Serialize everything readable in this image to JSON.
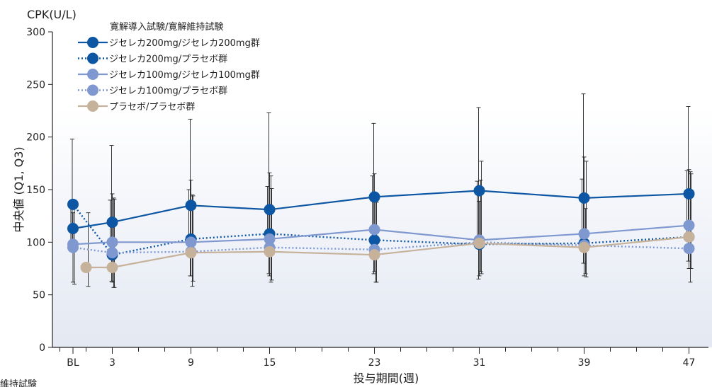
{
  "chart_data": {
    "type": "line",
    "ylabel_top": "CPK(U/L)",
    "ylabel_side": "中央値 (Q1, Q3)",
    "xlabel": "投与期間(週)",
    "legend_title": "寛解導入試験/寛解維持試験",
    "footnote": "維持試験",
    "x_weeks": [
      0,
      3,
      9,
      15,
      23,
      31,
      39,
      47
    ],
    "x_tick_labels": [
      "BL",
      "3",
      "9",
      "15",
      "23",
      "31",
      "39",
      "47"
    ],
    "ylim": [
      0,
      300
    ],
    "y_ticks": [
      0,
      50,
      100,
      150,
      200,
      250,
      300
    ],
    "series": [
      {
        "name": "ジセレカ200mg/ジセレカ200mg群",
        "color": "#0d56a3",
        "line": "solid",
        "segments": [
          [
            [
              0,
              113,
              96,
              135
            ],
            [
              3,
              119,
              90,
              140
            ],
            [
              9,
              135,
              98,
              150
            ],
            [
              15,
              131,
              95,
              153
            ],
            [
              23,
              143,
              102,
              163
            ],
            [
              31,
              149,
              100,
              158
            ],
            [
              39,
              142,
              104,
              160
            ],
            [
              47,
              146,
              103,
              168
            ]
          ],
          [
            [
              0,
              136,
              92,
              198
            ],
            [
              3,
              88,
              63,
              192
            ],
            [
              9,
              103,
              68,
              217
            ],
            [
              15,
              108,
              70,
              223
            ],
            [
              23,
              102,
              70,
              213
            ],
            [
              31,
              98,
              65,
              228
            ],
            [
              39,
              99,
              80,
              241
            ],
            [
              47,
              105,
              82,
              229
            ]
          ]
        ],
        "segment_styles": [
          "solid",
          "dotted"
        ]
      },
      {
        "name": "ジセレカ100mg/ジセレカ100mg群",
        "color": "#7f98d0",
        "segments": [
          [
            [
              0,
              98,
              62,
              128
            ],
            [
              3,
              100,
              62,
              146
            ],
            [
              9,
              100,
              68,
              159
            ],
            [
              15,
              103,
              68,
              166
            ],
            [
              23,
              112,
              72,
              165
            ],
            [
              31,
              102,
              68,
              139
            ],
            [
              39,
              108,
              68,
              181
            ],
            [
              47,
              116,
              75,
              169
            ]
          ],
          [
            [
              0,
              95,
              60,
              132
            ],
            [
              3,
              90,
              57,
              142
            ],
            [
              9,
              91,
              58,
              145
            ],
            [
              15,
              95,
              62,
              163
            ],
            [
              23,
              93,
              62,
              145
            ],
            [
              31,
              100,
              72,
              159
            ],
            [
              39,
              97,
              70,
              132
            ],
            [
              47,
              94,
              62,
              167
            ]
          ]
        ],
        "segment_styles": [
          "solid",
          "dotted"
        ]
      },
      {
        "name": "プラセボ/プラセボ群",
        "color": "#c6b29a",
        "segments": [
          [
            [
              1,
              76,
              58,
              128
            ],
            [
              3,
              76,
              57,
              141
            ],
            [
              9,
              90,
              63,
              144
            ],
            [
              15,
              91,
              64,
              151
            ],
            [
              23,
              88,
              62,
              138
            ],
            [
              31,
              99,
              70,
              177
            ],
            [
              39,
              95,
              67,
              177
            ],
            [
              47,
              105,
              75,
              165
            ]
          ]
        ],
        "segment_styles": [
          "solid"
        ]
      }
    ],
    "legend": [
      {
        "label": "ジセレカ200mg/ジセレカ200mg群",
        "color": "#0d56a3",
        "style": "solid"
      },
      {
        "label": "ジセレカ200mg/プラセボ群",
        "color": "#0d56a3",
        "style": "dotted"
      },
      {
        "label": "ジセレカ100mg/ジセレカ100mg群",
        "color": "#7f98d0",
        "style": "solid"
      },
      {
        "label": "ジセレカ100mg/プラセボ群",
        "color": "#7f98d0",
        "style": "dotted"
      },
      {
        "label": "プラセボ/プラセボ群",
        "color": "#c6b29a",
        "style": "solid"
      }
    ]
  }
}
